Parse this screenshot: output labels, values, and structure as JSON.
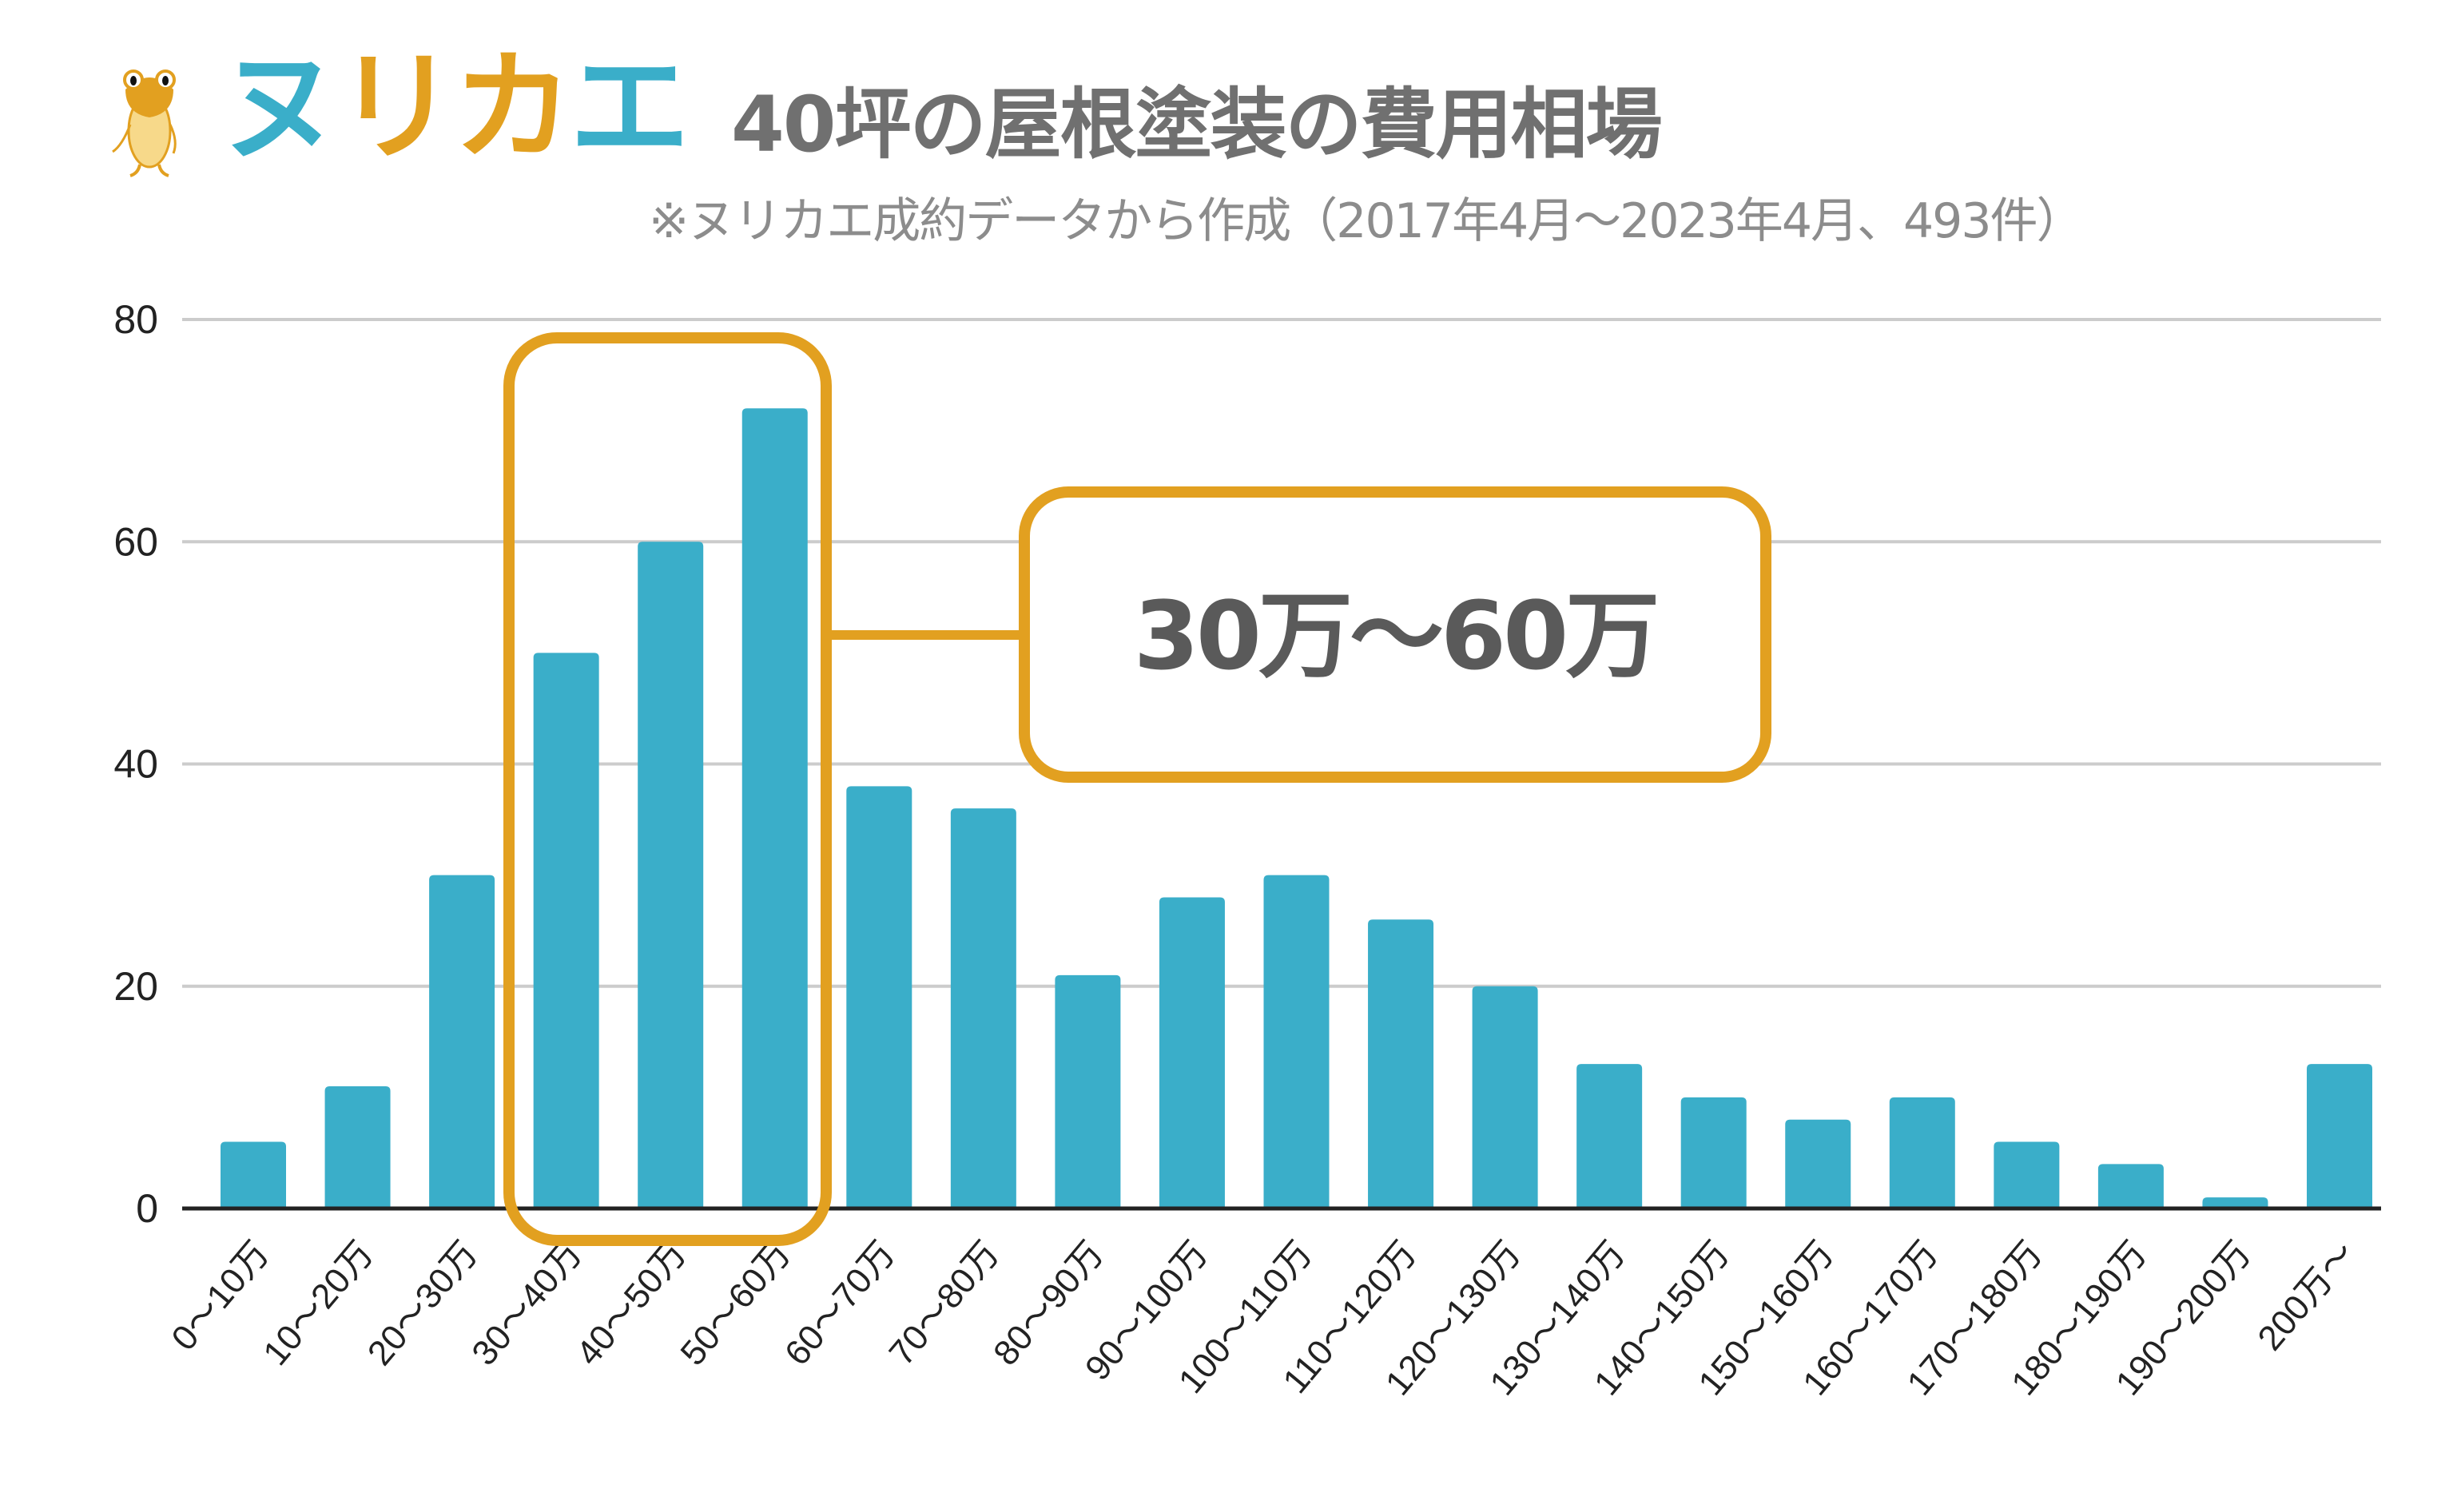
{
  "logo": {
    "brand": "ヌリカエ",
    "chars": [
      "ヌ",
      "リ",
      "カ",
      "エ"
    ],
    "mascot": "frog-mascot-icon",
    "colors": {
      "blue": "#3aaec9",
      "orange": "#e2a020",
      "frog_body": "#f7d98a"
    }
  },
  "header": {
    "title": "40坪の屋根塗装の費用相場",
    "subtitle": "※ヌリカエ成約データから作成（2017年4月〜2023年4月、493件）"
  },
  "callout": {
    "label": "30万〜60万",
    "highlight_range": [
      "30〜40万",
      "50〜60万"
    ]
  },
  "colors": {
    "bar": "#3aaec9",
    "highlight": "#e2a020",
    "grid": "#cccccc",
    "axis": "#222222",
    "title": "#707070",
    "subtitle": "#8c8c8c",
    "callout_text": "#5a5a5a"
  },
  "chart_data": {
    "type": "bar",
    "title": "40坪の屋根塗装の費用相場",
    "subtitle": "※ヌリカエ成約データから作成（2017年4月〜2023年4月、493件）",
    "xlabel": "",
    "ylabel": "",
    "ylim": [
      0,
      80
    ],
    "yticks": [
      0,
      20,
      40,
      60,
      80
    ],
    "grid": true,
    "legend": null,
    "categories": [
      "0〜10万",
      "10〜20万",
      "20〜30万",
      "30〜40万",
      "40〜50万",
      "50〜60万",
      "60〜70万",
      "70〜80万",
      "80〜90万",
      "90〜100万",
      "100〜110万",
      "110〜120万",
      "120〜130万",
      "130〜140万",
      "140〜150万",
      "150〜160万",
      "160〜170万",
      "170〜180万",
      "180〜190万",
      "190〜200万",
      "200万〜"
    ],
    "values": [
      6,
      11,
      30,
      50,
      60,
      72,
      38,
      36,
      21,
      28,
      30,
      26,
      20,
      13,
      10,
      8,
      10,
      6,
      4,
      1,
      13
    ],
    "annotations": [
      {
        "text": "30万〜60万",
        "highlights_categories": [
          "30〜40万",
          "40〜50万",
          "50〜60万"
        ]
      }
    ]
  }
}
